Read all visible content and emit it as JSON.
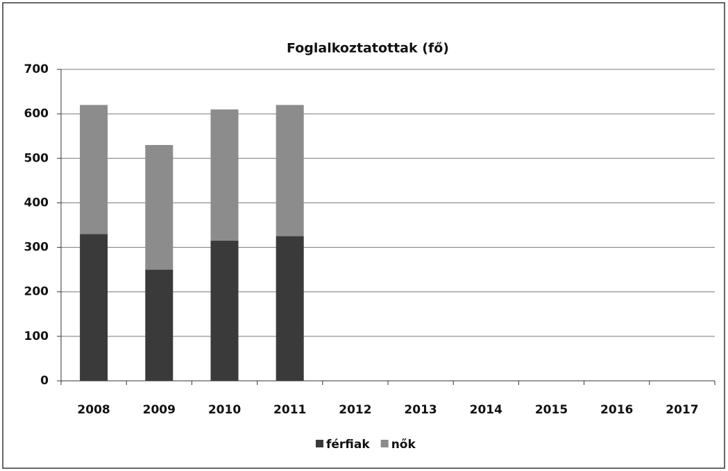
{
  "chart_data": {
    "type": "stacked_bar",
    "title": "Foglalkoztatottak (fő)",
    "categories": [
      "2008",
      "2009",
      "2010",
      "2011",
      "2012",
      "2013",
      "2014",
      "2015",
      "2016",
      "2017"
    ],
    "series": [
      {
        "name": "férfiak",
        "color": "#3a3a3a",
        "values": [
          330,
          250,
          315,
          325,
          null,
          null,
          null,
          null,
          null,
          null
        ]
      },
      {
        "name": "nők",
        "color": "#8c8c8c",
        "values": [
          290,
          280,
          295,
          295,
          null,
          null,
          null,
          null,
          null,
          null
        ]
      }
    ],
    "ylim": [
      0,
      700
    ],
    "yticks": [
      0,
      100,
      200,
      300,
      400,
      500,
      600,
      700
    ],
    "grid": true,
    "legend": "bottom"
  }
}
